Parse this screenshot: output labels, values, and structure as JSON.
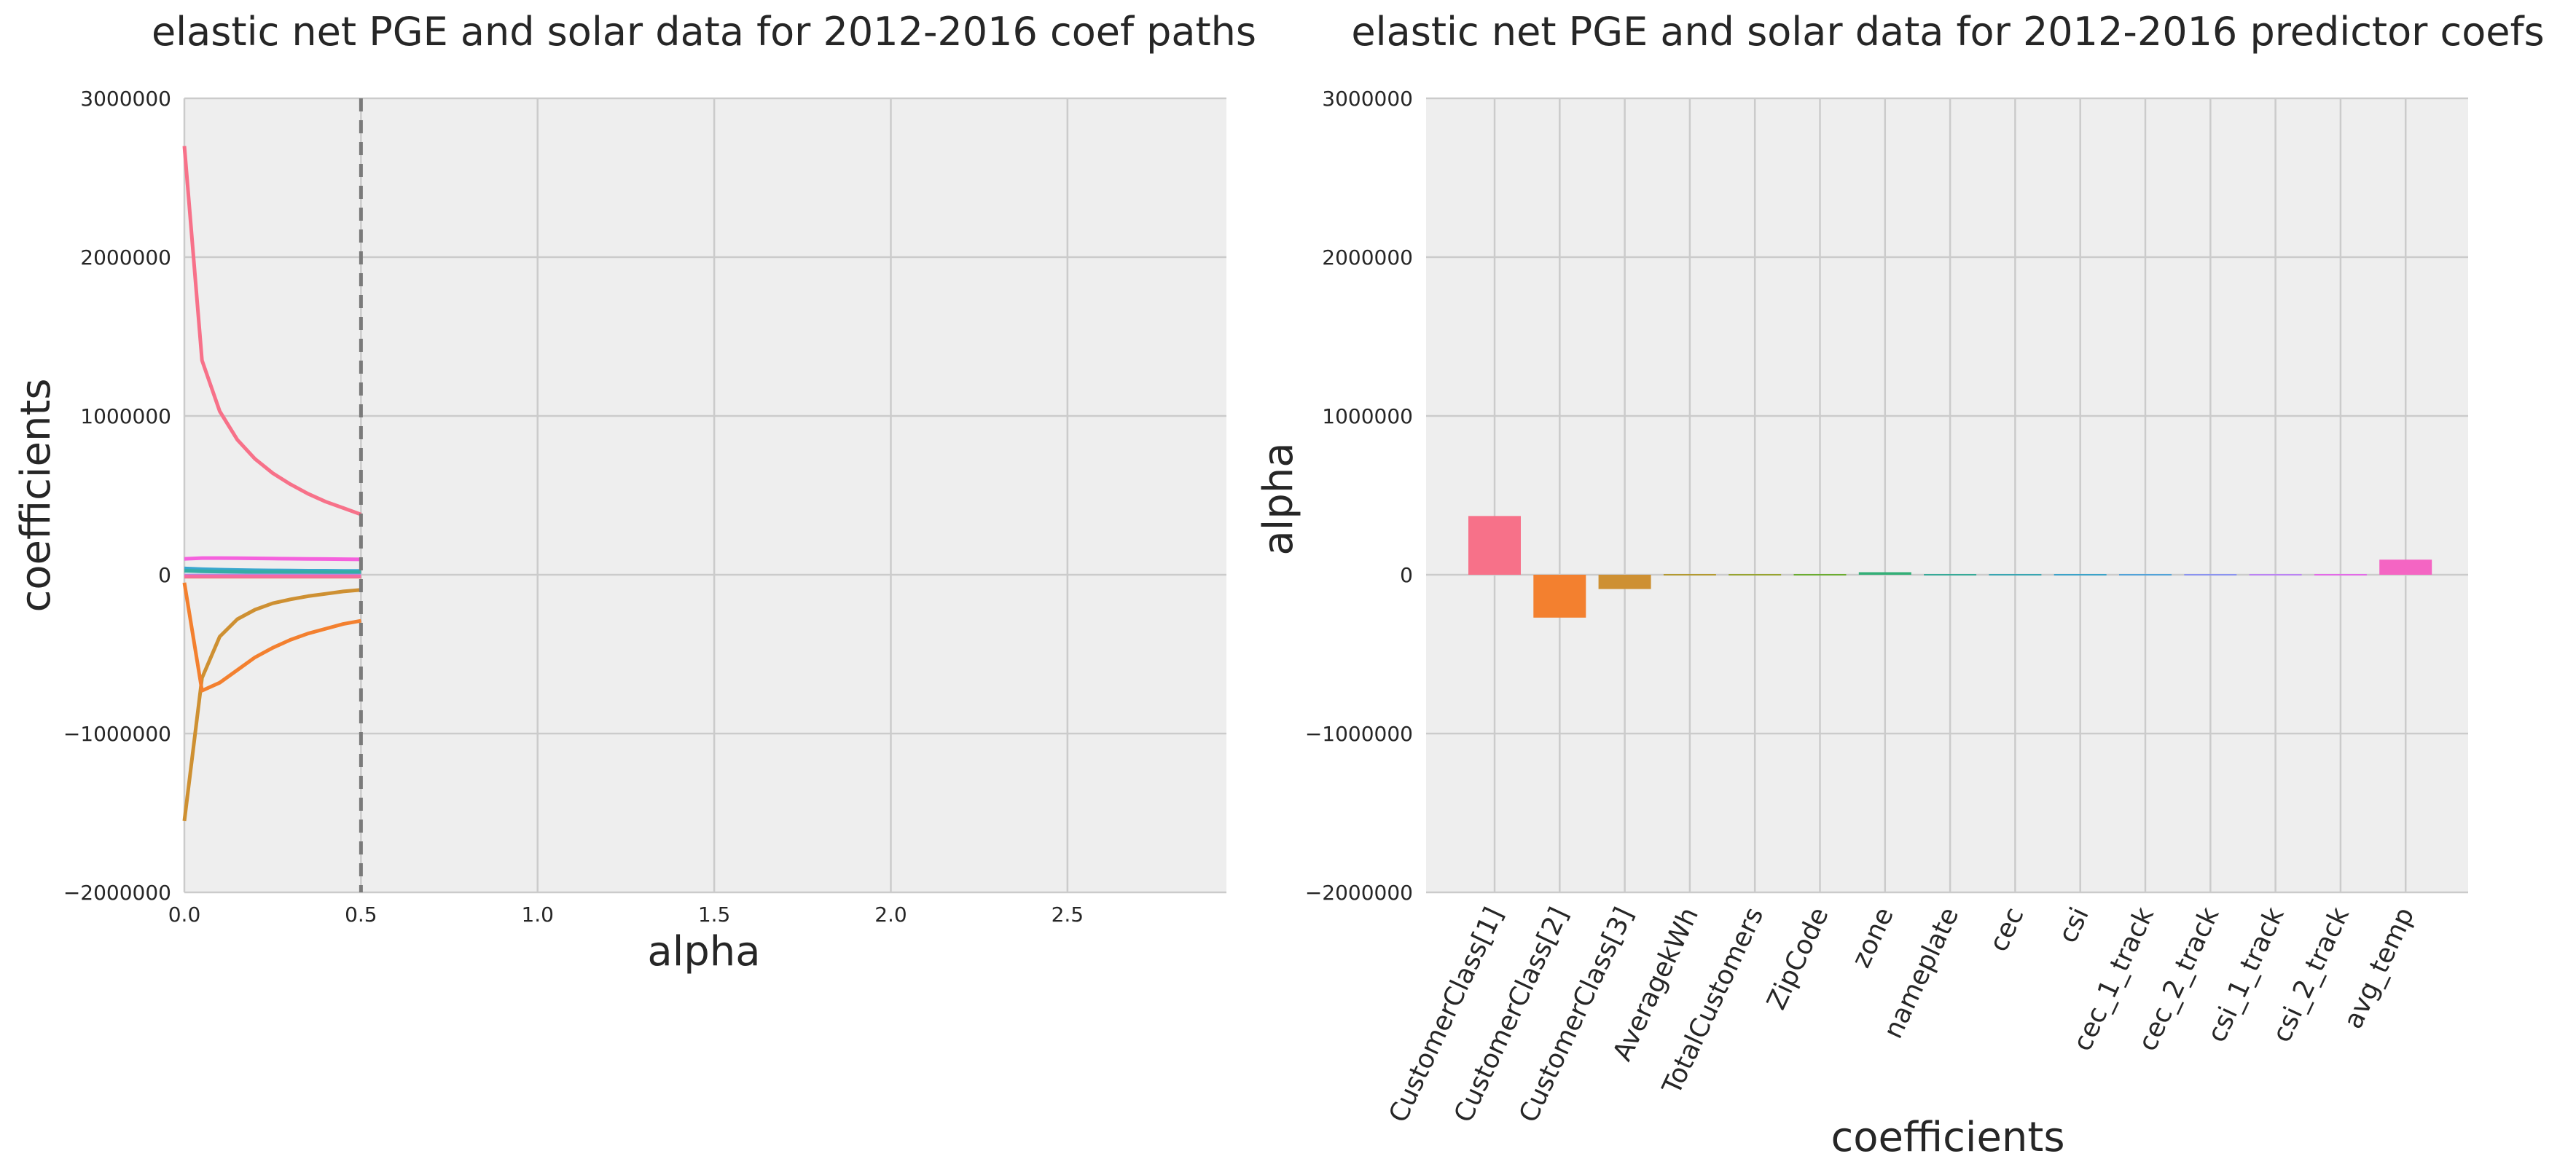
{
  "chart_data": [
    {
      "type": "line",
      "title": "elastic net PGE and solar data for 2012-2016 coef paths",
      "xlabel": "alpha",
      "ylabel": "coefficients",
      "xlim": [
        0,
        2.95
      ],
      "ylim": [
        -2000000,
        3000000
      ],
      "x_ticks": [
        0.0,
        0.5,
        1.0,
        1.5,
        2.0,
        2.5
      ],
      "x_tick_labels": [
        "0.0",
        "0.5",
        "1.0",
        "1.5",
        "2.0",
        "2.5"
      ],
      "y_ticks": [
        -2000000,
        -1000000,
        0,
        1000000,
        2000000,
        3000000
      ],
      "y_tick_labels": [
        "−2000000",
        "−1000000",
        "0",
        "1000000",
        "2000000",
        "3000000"
      ],
      "grid": true,
      "selected_alpha": 0.5,
      "x": [
        0.0,
        0.05,
        0.1,
        0.15,
        0.2,
        0.25,
        0.3,
        0.35,
        0.4,
        0.45,
        0.5
      ],
      "series": [
        {
          "color": "#f77189",
          "values": [
            2700000,
            1350000,
            1030000,
            850000,
            730000,
            640000,
            570000,
            510000,
            460000,
            420000,
            380000
          ]
        },
        {
          "color": "#ce9032",
          "values": [
            -1550000,
            -650000,
            -390000,
            -280000,
            -220000,
            -180000,
            -155000,
            -135000,
            -120000,
            -105000,
            -95000
          ]
        },
        {
          "color": "#f3802f",
          "values": [
            -50000,
            -730000,
            -680000,
            -600000,
            -520000,
            -460000,
            -410000,
            -370000,
            -340000,
            -310000,
            -290000
          ]
        },
        {
          "color": "#f561dd",
          "values": [
            100000,
            105000,
            105000,
            104000,
            103000,
            102000,
            101000,
            100000,
            99000,
            98000,
            97000
          ]
        },
        {
          "color": "#39a7d0",
          "values": [
            40000,
            35000,
            32000,
            30000,
            28000,
            27000,
            26000,
            25000,
            25000,
            24000,
            24000
          ]
        },
        {
          "color": "#36ada4",
          "values": [
            25000,
            22000,
            20000,
            19000,
            18000,
            18000,
            17000,
            17000,
            16000,
            16000,
            16000
          ]
        },
        {
          "color": "#a48cf4",
          "values": [
            -5000,
            -5000,
            -5000,
            -5000,
            -5000,
            -5000,
            -5000,
            -5000,
            -5000,
            -5000,
            -5000
          ]
        },
        {
          "color": "#dc8932",
          "values": [
            -12000,
            -12000,
            -12000,
            -12000,
            -12000,
            -12000,
            -12000,
            -12000,
            -12000,
            -12000,
            -12000
          ]
        },
        {
          "color": "#f66ba0",
          "values": [
            -10000,
            -10000,
            -10000,
            -10000,
            -10000,
            -10000,
            -10000,
            -10000,
            -10000,
            -10000,
            -10000
          ]
        }
      ]
    },
    {
      "type": "bar",
      "title": "elastic net PGE and solar data for 2012-2016 predictor coefs",
      "xlabel": "coefficients",
      "ylabel": "alpha",
      "ylim": [
        -2000000,
        3000000
      ],
      "y_ticks": [
        -2000000,
        -1000000,
        0,
        1000000,
        2000000,
        3000000
      ],
      "y_tick_labels": [
        "−2000000",
        "−1000000",
        "0",
        "1000000",
        "2000000",
        "3000000"
      ],
      "grid": true,
      "categories": [
        "CustomerClass[1]",
        "CustomerClass[2]",
        "CustomerClass[3]",
        "AveragekWh",
        "TotalCustomers",
        "ZipCode",
        "zone",
        "nameplate",
        "cec",
        "csi",
        "cec_1_track",
        "cec_2_track",
        "csi_1_track",
        "csi_2_track",
        "avg_temp"
      ],
      "values": [
        370000,
        -270000,
        -90000,
        -2000,
        -3000,
        4000,
        16000,
        -5000,
        -3000,
        6000,
        -4000,
        -2000,
        -3000,
        -2000,
        95000
      ],
      "colors": [
        "#f77189",
        "#f3802f",
        "#ce9032",
        "#b39a31",
        "#97a431",
        "#6bac31",
        "#34af77",
        "#37aa98",
        "#39a6b2",
        "#3ba3c9",
        "#52a3d9",
        "#8b93f0",
        "#bb83f4",
        "#e36ae8",
        "#f465c3"
      ]
    }
  ]
}
